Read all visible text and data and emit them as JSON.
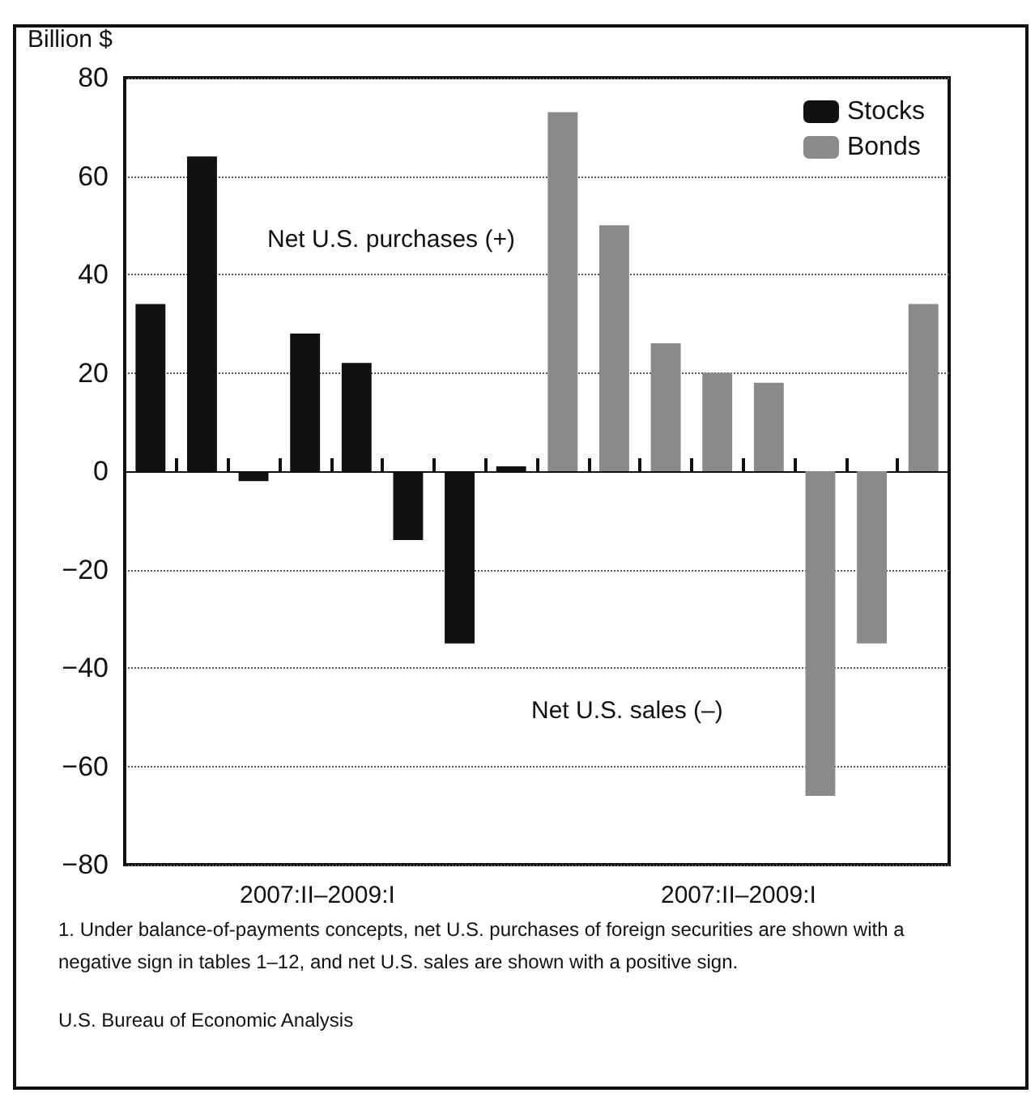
{
  "chart_data": {
    "type": "bar",
    "ylabel": "Billion $",
    "categories": [
      null,
      null,
      null,
      null,
      null,
      null,
      null,
      null,
      null,
      null,
      null,
      null,
      null,
      null,
      null,
      null
    ],
    "series": [
      {
        "name": "Stocks",
        "color": "#111111",
        "values": [
          34,
          64,
          -2,
          28,
          22,
          -14,
          -35,
          1,
          null,
          null,
          null,
          null,
          null,
          null,
          null,
          null
        ]
      },
      {
        "name": "Bonds",
        "color": "#8a8a8a",
        "values": [
          null,
          null,
          null,
          null,
          null,
          null,
          null,
          null,
          73,
          50,
          26,
          20,
          18,
          -66,
          -35,
          34
        ]
      }
    ],
    "ylim": [
      -80,
      80
    ],
    "yticks": [
      -80,
      -60,
      -40,
      -20,
      0,
      20,
      40,
      60,
      80
    ],
    "grid": "y",
    "legend": "top right",
    "annotations": [
      "Net U.S. purchases (+)",
      "Net U.S. sales (–)",
      "2007:II–2009:I",
      "2007:II–2009:I",
      "1. Under balance-of-payments concepts, net U.S. purchases of foreign securities are shown with a negative sign in tables 1–12, and net U.S. sales are shown with a positive sign.",
      "U.S. Bureau of Economic Analysis"
    ]
  }
}
